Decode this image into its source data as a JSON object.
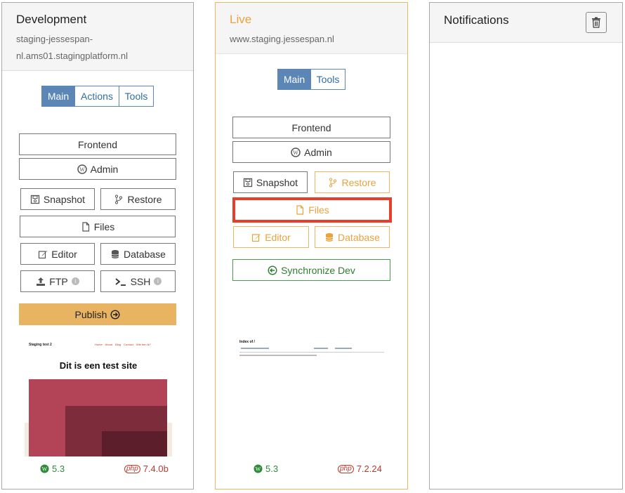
{
  "development": {
    "title": "Development",
    "host_line1": "staging-jessespan-",
    "host_line2": "nl.ams01.stagingplatform.nl",
    "tabs": [
      "Main",
      "Actions",
      "Tools"
    ],
    "buttons": {
      "frontend": "Frontend",
      "admin": "Admin",
      "snapshot": "Snapshot",
      "restore": "Restore",
      "files": "Files",
      "editor": "Editor",
      "database": "Database",
      "ftp": "FTP",
      "ssh": "SSH",
      "publish": "Publish"
    },
    "preview": {
      "site_name": "Staging test 2",
      "menu": [
        "Home",
        "About",
        "Blog",
        "Contact",
        "Wie ben ik?"
      ],
      "heading": "Dit is een test site"
    },
    "wp_version": "5.3",
    "php_version": "7.4.0b"
  },
  "live": {
    "title": "Live",
    "host": "www.staging.jessespan.nl",
    "tabs": [
      "Main",
      "Tools"
    ],
    "buttons": {
      "frontend": "Frontend",
      "admin": "Admin",
      "snapshot": "Snapshot",
      "restore": "Restore",
      "files": "Files",
      "editor": "Editor",
      "database": "Database",
      "sync": "Synchronize Dev"
    },
    "preview": {
      "heading": "Index of /"
    },
    "wp_version": "5.3",
    "php_version": "7.2.24"
  },
  "notifications": {
    "title": "Notifications",
    "trash_icon": "trash-icon"
  },
  "colors": {
    "accent_blue": "#5b86b5",
    "live_orange": "#e8a33d",
    "publish_bg": "#e8b461",
    "sync_green": "#43a047",
    "highlight_red": "#e53e2a"
  }
}
